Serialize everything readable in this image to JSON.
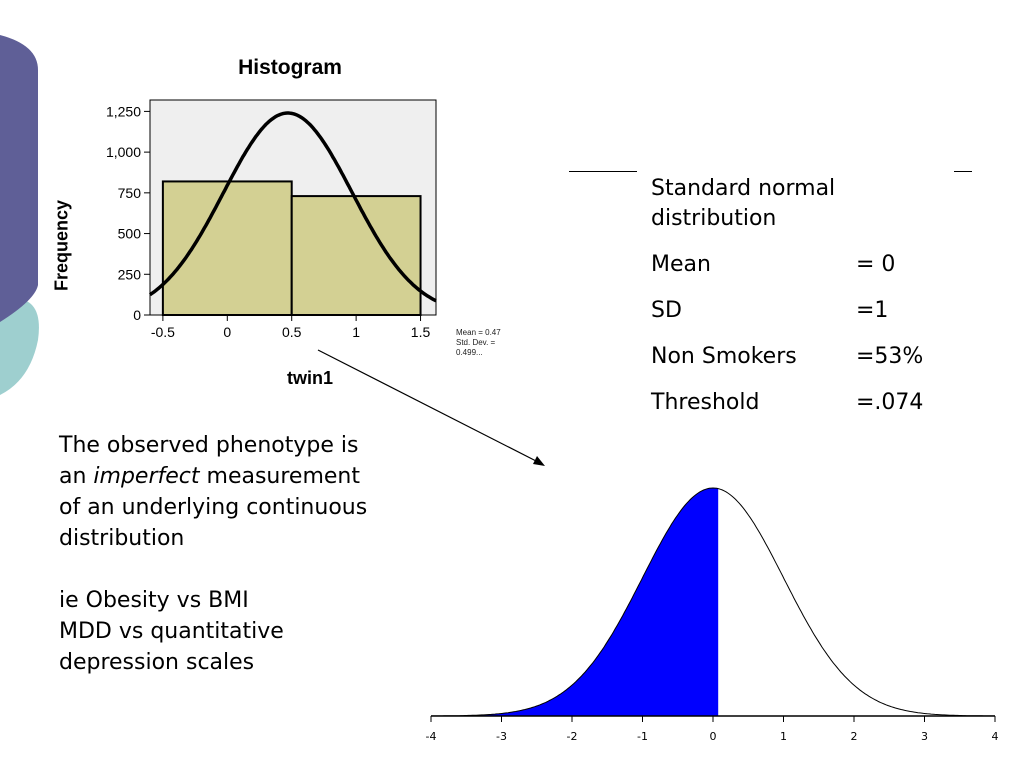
{
  "slide": {
    "info": {
      "heading_line1": "Standard normal",
      "heading_line2": "distribution",
      "rows": [
        {
          "label": "Mean",
          "value": "= 0"
        },
        {
          "label": "SD",
          "value": "=1"
        },
        {
          "label": "Non Smokers",
          "value": "=53%"
        },
        {
          "label": "Threshold",
          "value": "=.074"
        }
      ]
    },
    "body": {
      "line1": "The observed phenotype is",
      "line2_pre": "an ",
      "line2_italic": "imperfect",
      "line2_post": " measurement",
      "line3": "of an underlying continuous",
      "line4": "distribution",
      "line5": "ie Obesity vs BMI",
      "line6": "MDD vs quantitative",
      "line7": "depression scales"
    },
    "colors": {
      "deco_purple": "#5f5f97",
      "deco_teal": "#9ecfcf",
      "hist_bar": "#d3d093",
      "hist_bg": "#efefef",
      "normal_fill": "#0000ff"
    }
  },
  "chart_data": [
    {
      "type": "bar",
      "title": "Histogram",
      "xlabel": "twin1",
      "ylabel": "Frequency",
      "x_ticks": [
        "-0.5",
        "0",
        "0.5",
        "1",
        "1.5"
      ],
      "y_ticks": [
        "0",
        "250",
        "500",
        "750",
        "1,000",
        "1,250"
      ],
      "xlim": [
        -0.6,
        1.62
      ],
      "ylim": [
        0,
        1320
      ],
      "bins": [
        {
          "from": -0.5,
          "to": 0.5,
          "value": 820
        },
        {
          "from": 0.5,
          "to": 1.5,
          "value": 730
        }
      ],
      "normal_curve": {
        "mean": 0.47,
        "sd": 0.499,
        "peak": 1240
      },
      "stats": [
        "Mean = 0.47",
        "Std. Dev. =",
        "0.499..."
      ]
    },
    {
      "type": "area",
      "distribution": "standard normal",
      "mean": 0,
      "sd": 1,
      "threshold": 0.074,
      "shaded": "left of threshold",
      "xlim": [
        -4,
        4
      ],
      "x_ticks": [
        "-4",
        "-3",
        "-2",
        "-1",
        "0",
        "1",
        "2",
        "3",
        "4"
      ]
    }
  ]
}
